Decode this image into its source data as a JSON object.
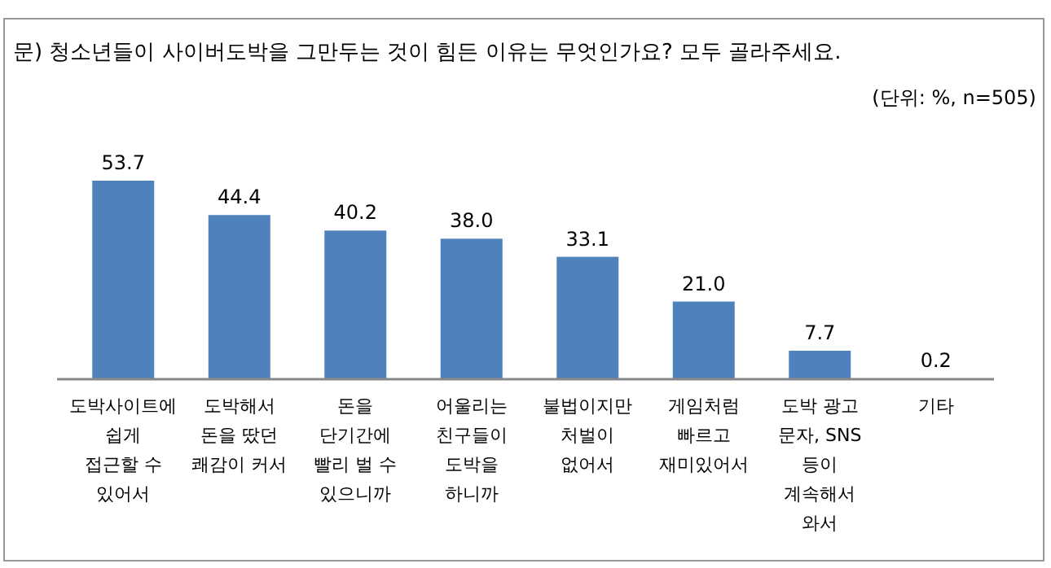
{
  "chart_data": {
    "type": "bar",
    "title": "문) 청소년들이 사이버도박을 그만두는 것이 힘든 이유는 무엇인가요? 모두 골라주세요.",
    "subtitle": "(단위: %, n=505)",
    "categories": [
      "도박사이트에\n쉽게\n접근할 수\n있어서",
      "도박해서\n돈을 땄던\n쾌감이 커서",
      "돈을\n단기간에\n빨리 벌 수\n있으니까",
      "어울리는\n친구들이\n도박을\n하니까",
      "불법이지만\n처벌이\n없어서",
      "게임처럼\n빠르고\n재미있어서",
      "도박 광고\n문자, SNS\n등이\n계속해서\n와서",
      "기타"
    ],
    "values": [
      53.7,
      44.4,
      40.2,
      38.0,
      33.1,
      21.0,
      7.7,
      0.2
    ],
    "value_labels": [
      "53.7",
      "44.4",
      "40.2",
      "38.0",
      "33.1",
      "21.0",
      "7.7",
      "0.2"
    ],
    "color": "#4f81bd"
  }
}
